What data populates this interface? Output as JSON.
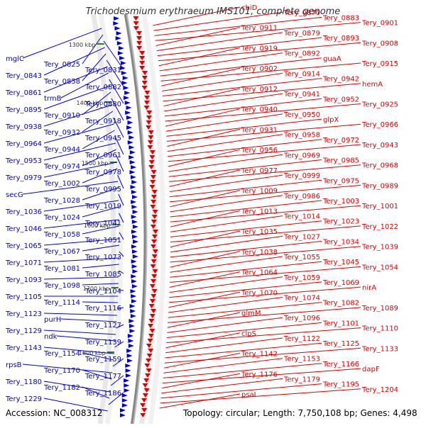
{
  "title": "Trichodesmium erythraeum IMS101, complete genome",
  "footer": {
    "accession": "Accession: NC_008312",
    "stats": "Topology: circular; Length: 7,750,108 bp; Genes: 4,498"
  },
  "colors": {
    "forward": "#0000dd",
    "reverse": "#dd0000",
    "backbone": "#888888"
  },
  "scale_labels": [
    "1300 kbp",
    "1400 kbp",
    "1500 kbp",
    "1600 kbp",
    "1700 kbp",
    "1800 kbp"
  ],
  "left_labels": [
    "mglC",
    "Tery_0825",
    "Tery_0831",
    "Tery_0843",
    "Tery_0858",
    "Tery_0882",
    "Tery_0861",
    "trmB",
    "Tery_0880",
    "Tery_0895",
    "Tery_0910",
    "Tery_0918",
    "Tery_0938",
    "Tery_0932",
    "Tery_0945",
    "Tery_0964",
    "Tery_0944",
    "Tery_0961",
    "Tery_0953",
    "Tery_0974",
    "Tery_0978",
    "Tery_0979",
    "Tery_1002",
    "Tery_0995",
    "secG",
    "Tery_1028",
    "Tery_1019",
    "Tery_1036",
    "Tery_1024",
    "Tery_1041",
    "Tery_1046",
    "Tery_1058",
    "Tery_1051",
    "Tery_1065",
    "Tery_1067",
    "Tery_1073",
    "Tery_1071",
    "Tery_1081",
    "Tery_1085",
    "Tery_1093",
    "Tery_1098",
    "Tery_1104",
    "Tery_1105",
    "Tery_1114",
    "Tery_1116",
    "Tery_1123",
    "purH",
    "Tery_1127",
    "Tery_1129",
    "ndk",
    "Tery_1139",
    "Tery_1143",
    "Tery_1154",
    "Tery_1159",
    "rpsB",
    "Tery_1170",
    "Tery_1177",
    "Tery_1180",
    "Tery_1182",
    "Tery_1186",
    "Tery_1229"
  ],
  "right_labels": [
    "cbiD",
    "Tery_0870",
    "Tery_0883",
    "Tery_0901",
    "Tery_0911",
    "Tery_0879",
    "Tery_0893",
    "Tery_0908",
    "Tery_0919",
    "Tery_0892",
    "guaA",
    "Tery_0915",
    "Tery_0902",
    "Tery_0914",
    "Tery_0942",
    "hemA",
    "Tery_0912",
    "Tery_0941",
    "Tery_0952",
    "Tery_0925",
    "Tery_0940",
    "Tery_0950",
    "glpX",
    "Tery_0966",
    "Tery_0931",
    "Tery_0958",
    "Tery_0972",
    "Tery_0943",
    "Tery_0956",
    "Tery_0969",
    "Tery_0985",
    "Tery_0968",
    "Tery_0977",
    "Tery_0999",
    "Tery_0975",
    "Tery_0989",
    "Tery_1009",
    "Tery_0986",
    "Tery_1003",
    "Tery_1001",
    "Tery_1013",
    "Tery_1014",
    "Tery_1023",
    "Tery_1022",
    "Tery_1035",
    "Tery_1027",
    "Tery_1034",
    "Tery_1039",
    "Tery_1038",
    "Tery_1055",
    "Tery_1045",
    "Tery_1054",
    "Tery_1064",
    "Tery_1059",
    "Tery_1069",
    "nirA",
    "Tery_1070",
    "Tery_1074",
    "Tery_1082",
    "Tery_1089",
    "glmM",
    "Tery_1096",
    "Tery_1101",
    "Tery_1110",
    "clpS",
    "Tery_1122",
    "Tery_1125",
    "Tery_1133",
    "Tery_1142",
    "Tery_1153",
    "Tery_1166",
    "dapF",
    "Tery_1176",
    "Tery_1179",
    "Tery_1195",
    "Tery_1204",
    "psaI"
  ]
}
